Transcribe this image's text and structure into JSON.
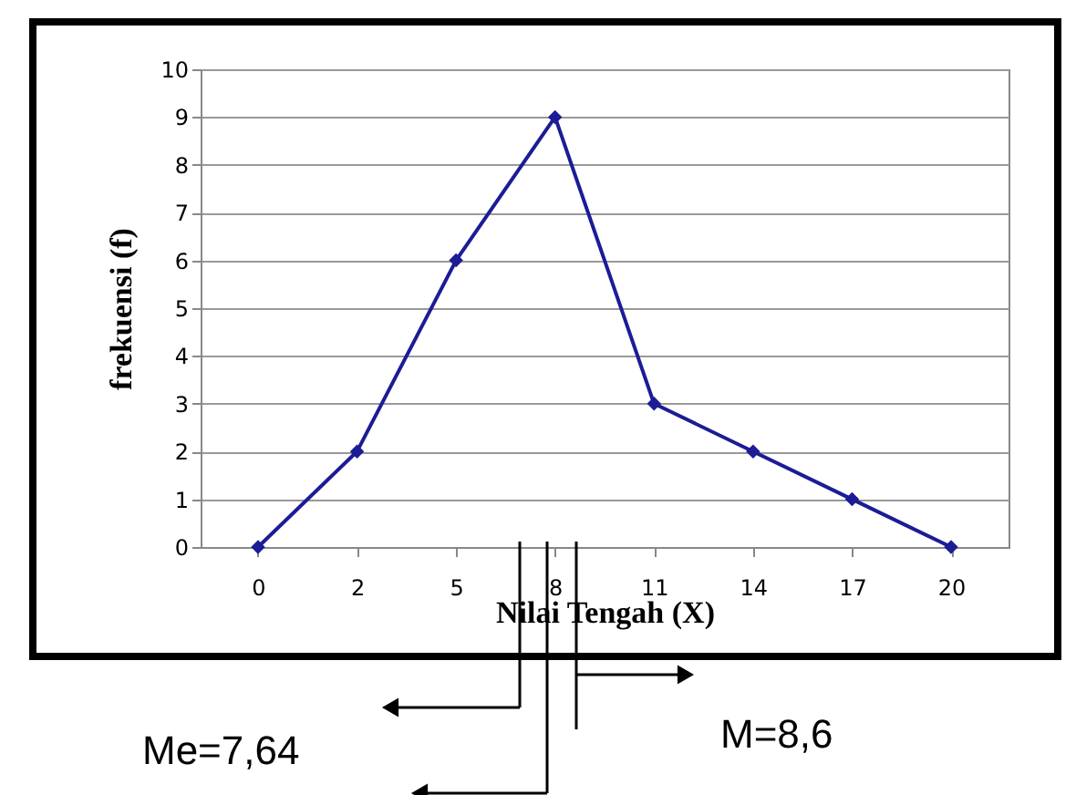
{
  "chart_data": {
    "type": "line",
    "xlabel": "Nilai Tengah (X)",
    "ylabel": "frekuensi (f)",
    "categories": [
      "0",
      "2",
      "5",
      "8",
      "11",
      "14",
      "17",
      "20"
    ],
    "series": [
      {
        "color": "#1c1c96",
        "values": [
          0,
          2,
          6,
          9,
          3,
          2,
          1,
          0
        ]
      }
    ],
    "ylim": [
      0,
      10
    ],
    "yticks": [
      0,
      1,
      2,
      3,
      4,
      5,
      6,
      7,
      8,
      9,
      10
    ],
    "grid": "y",
    "marker": "diamond",
    "line_style": "solid",
    "annotations": [
      "Me=7,64",
      "M=8,6"
    ]
  }
}
